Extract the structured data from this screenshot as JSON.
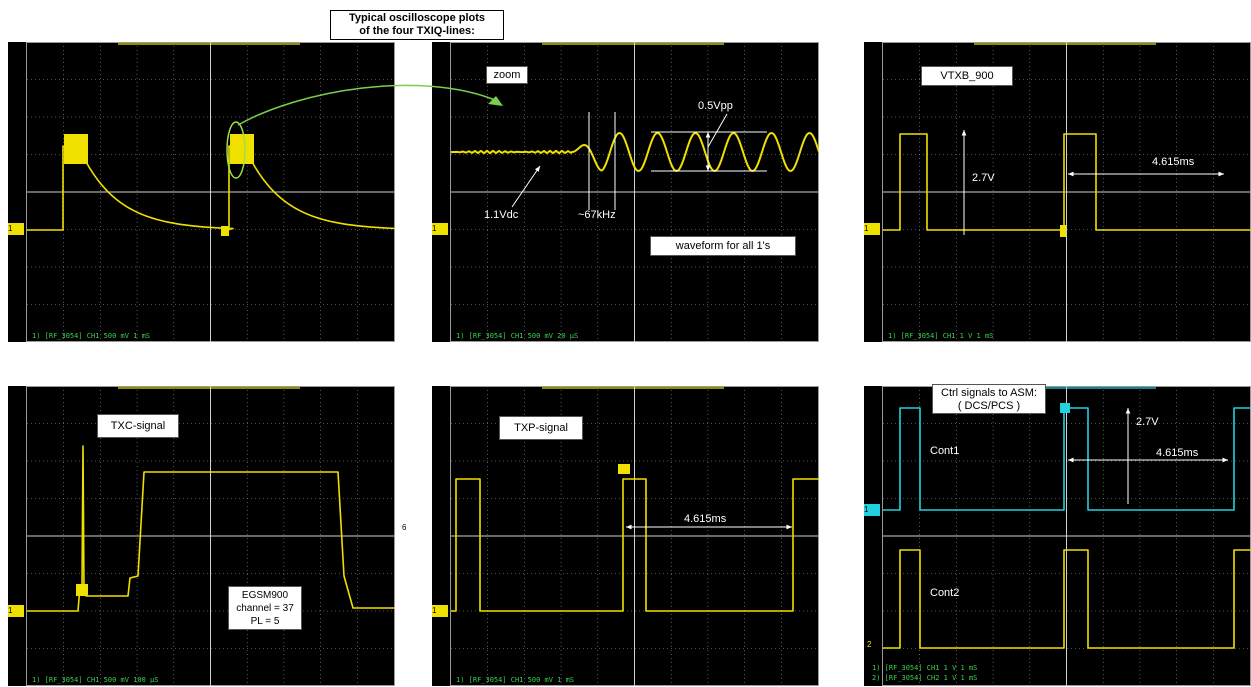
{
  "title": "Typical oscilloscope plots\nof  the four TXIQ-lines:",
  "page_number": "6",
  "colors": {
    "trace": "#f0e000",
    "trace2": "#22d0e0",
    "grid": "#9a9a9a",
    "screen": "#000000",
    "status": "#39d24a"
  },
  "chart_data": [
    {
      "type": "line",
      "id": "scope-1",
      "status": "1) [RF_3054] CH1 500 mV  1 mS",
      "channel_marker": "1",
      "series": [
        {
          "values": "pulse with exponential decay"
        }
      ],
      "annotations": []
    },
    {
      "type": "line",
      "id": "scope-2",
      "status": "1) [RF_3054] CH1 500 mV  20 µS",
      "channel_marker": "1",
      "annotations": [
        "zoom",
        "0.5Vpp",
        "1.1Vdc",
        "~67kHz",
        "waveform for all 1's"
      ]
    },
    {
      "type": "line",
      "id": "scope-3",
      "status": "1) [RF_3054] CH1 1 V  1 mS",
      "channel_marker": "1",
      "annotations": [
        "VTXB_900",
        "2.7V",
        "4.615ms"
      ]
    },
    {
      "type": "line",
      "id": "scope-4",
      "status": "1) [RF_3054] CH1 500 mV  100 µS",
      "channel_marker": "1",
      "annotations": [
        "TXC-signal",
        "EGSM900\nchannel = 37\nPL = 5"
      ]
    },
    {
      "type": "line",
      "id": "scope-5",
      "status": "1) [RF_3054] CH1 500 mV  1 mS",
      "channel_marker": "1",
      "annotations": [
        "TXP-signal",
        "4.615ms"
      ]
    },
    {
      "type": "line",
      "id": "scope-6",
      "status": "1) [RF_3054] CH1  1 V  1 mS",
      "status2": "2) [RF_3054] CH2  1 V  1 mS",
      "channel_marker": "1",
      "channel_marker2": "2",
      "annotations": [
        "Ctrl signals to ASM:\n( DCS/PCS )",
        "2.7V",
        "Cont1",
        "4.615ms",
        "Cont2"
      ]
    }
  ]
}
